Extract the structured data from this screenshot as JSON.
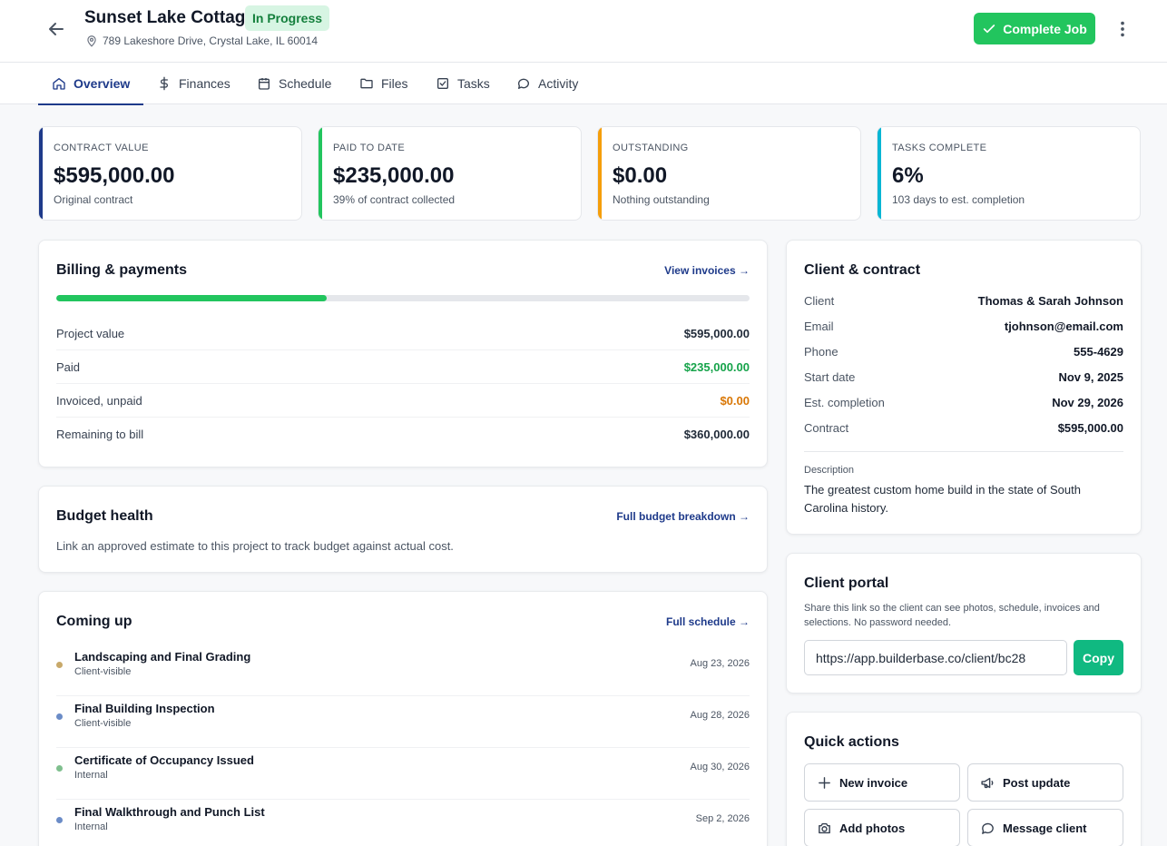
{
  "header": {
    "title": "Sunset Lake Cottage",
    "status": "In Progress",
    "address": "789 Lakeshore Drive, Crystal Lake, IL 60014",
    "complete_label": "Complete Job"
  },
  "tabs": [
    {
      "label": "Overview",
      "icon": "home-icon"
    },
    {
      "label": "Finances",
      "icon": "dollar-icon"
    },
    {
      "label": "Schedule",
      "icon": "calendar-icon"
    },
    {
      "label": "Files",
      "icon": "folder-icon"
    },
    {
      "label": "Tasks",
      "icon": "checkbox-icon"
    },
    {
      "label": "Activity",
      "icon": "chat-icon"
    }
  ],
  "stats": [
    {
      "label": "CONTRACT VALUE",
      "value": "$595,000.00",
      "sub": "Original contract",
      "color": "#1e3a8a"
    },
    {
      "label": "PAID TO DATE",
      "value": "$235,000.00",
      "sub": "39% of contract collected",
      "color": "#22c55e"
    },
    {
      "label": "OUTSTANDING",
      "value": "$0.00",
      "sub": "Nothing outstanding",
      "color": "#f59e0b"
    },
    {
      "label": "TASKS COMPLETE",
      "value": "6%",
      "sub": "103 days to est. completion",
      "color": "#06b6d4"
    }
  ],
  "billing": {
    "title": "Billing & payments",
    "link": "View invoices →",
    "progress": 0.39,
    "rows": [
      {
        "label": "Project value",
        "value": "$595,000.00",
        "color": "#1f2937"
      },
      {
        "label": "Paid",
        "value": "$235,000.00",
        "color": "#16a34a"
      },
      {
        "label": "Invoiced, unpaid",
        "value": "$0.00",
        "color": "#d97706"
      },
      {
        "label": "Remaining to bill",
        "value": "$360,000.00",
        "color": "#1f2937"
      }
    ]
  },
  "budget": {
    "title": "Budget health",
    "link": "Full budget breakdown →",
    "note": "Link an approved estimate to this project to track budget against actual cost."
  },
  "coming_up": {
    "title": "Coming up",
    "link": "Full schedule →",
    "events": [
      {
        "name": "Landscaping and Final Grading",
        "visibility": "Client-visible",
        "date": "Aug 23, 2026",
        "color": "#c8a96a"
      },
      {
        "name": "Final Building Inspection",
        "visibility": "Client-visible",
        "date": "Aug 28, 2026",
        "color": "#6b8cc7"
      },
      {
        "name": "Certificate of Occupancy Issued",
        "visibility": "Internal",
        "date": "Aug 30, 2026",
        "color": "#7fbf8e"
      },
      {
        "name": "Final Walkthrough and Punch List",
        "visibility": "Internal",
        "date": "Sep 2, 2026",
        "color": "#6b8cc7"
      }
    ]
  },
  "client": {
    "title": "Client & contract",
    "rows": [
      {
        "label": "Client",
        "value": "Thomas & Sarah Johnson"
      },
      {
        "label": "Email",
        "value": "tjohnson@email.com"
      },
      {
        "label": "Phone",
        "value": "555-4629"
      },
      {
        "label": "Start date",
        "value": "Nov 9, 2025"
      },
      {
        "label": "Est. completion",
        "value": "Nov 29, 2026"
      },
      {
        "label": "Contract",
        "value": "$595,000.00"
      }
    ],
    "description_label": "Description",
    "description": "The greatest custom home build in the state of South Carolina history."
  },
  "portal": {
    "title": "Client portal",
    "subtitle": "Share this link so the client can see photos, schedule, invoices and selections. No password needed.",
    "url": "https://app.builderbase.co/client/bc28",
    "copy_label": "Copy"
  },
  "quick_actions": {
    "title": "Quick actions",
    "items": [
      {
        "label": "New invoice",
        "icon": "plus-icon"
      },
      {
        "label": "Post update",
        "icon": "megaphone-icon"
      },
      {
        "label": "Add photos",
        "icon": "camera-icon"
      },
      {
        "label": "Message client",
        "icon": "chat-icon"
      }
    ]
  }
}
